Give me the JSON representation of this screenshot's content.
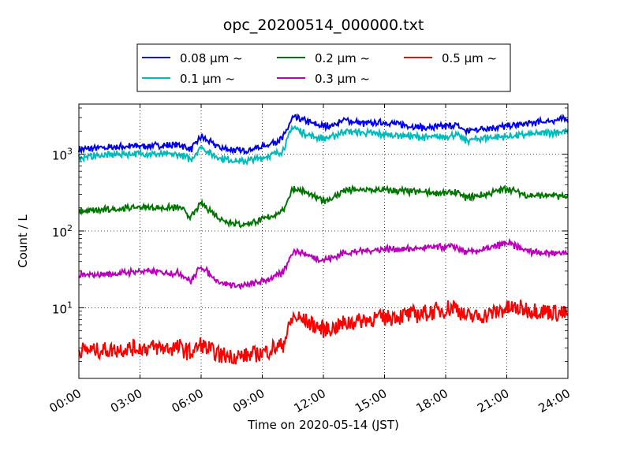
{
  "chart_data": {
    "type": "line",
    "title": "opc_20200514_000000.txt",
    "xlabel": "Time on 2020-05-14 (JST)",
    "ylabel": "Count / L",
    "y_scale": "log",
    "xlim": [
      "00:00",
      "24:00"
    ],
    "ylim": [
      1.2,
      4500
    ],
    "grid": true,
    "legend_position": "top-center",
    "legend_columns": 3,
    "x_ticks": [
      "00:00",
      "03:00",
      "06:00",
      "09:00",
      "12:00",
      "15:00",
      "18:00",
      "21:00",
      "24:00"
    ],
    "y_ticks": [
      {
        "base": "10",
        "exp": "1",
        "value": 10
      },
      {
        "base": "10",
        "exp": "2",
        "value": 100
      },
      {
        "base": "10",
        "exp": "3",
        "value": 1000
      }
    ],
    "x": [
      "00:00",
      "01:00",
      "02:00",
      "03:00",
      "04:00",
      "05:00",
      "05:30",
      "06:00",
      "06:30",
      "07:00",
      "08:00",
      "09:00",
      "10:00",
      "10:30",
      "11:00",
      "11:30",
      "12:00",
      "12:30",
      "13:00",
      "14:00",
      "15:00",
      "16:00",
      "17:00",
      "18:00",
      "18:30",
      "19:00",
      "20:00",
      "21:00",
      "22:00",
      "23:00",
      "24:00"
    ],
    "series": [
      {
        "name": "0.08 μm ~",
        "color": "#0000ee",
        "values": [
          1150,
          1200,
          1250,
          1280,
          1300,
          1320,
          1150,
          1700,
          1400,
          1200,
          1100,
          1250,
          1600,
          3000,
          2800,
          2500,
          2300,
          2400,
          2800,
          2500,
          2600,
          2400,
          2200,
          2300,
          2400,
          2000,
          2200,
          2300,
          2500,
          2700,
          2900
        ]
      },
      {
        "name": "0.1 μm ~",
        "color": "#00bbbb",
        "values": [
          900,
          960,
          1000,
          1020,
          1000,
          980,
          850,
          1250,
          1000,
          880,
          800,
          900,
          1100,
          2300,
          1900,
          1700,
          1600,
          1700,
          2000,
          1900,
          1800,
          1750,
          1650,
          1700,
          1800,
          1500,
          1650,
          1700,
          1800,
          1900,
          2000
        ]
      },
      {
        "name": "0.2 μm ~",
        "color": "#007700",
        "values": [
          180,
          185,
          195,
          205,
          200,
          200,
          150,
          230,
          180,
          140,
          120,
          140,
          180,
          360,
          330,
          280,
          250,
          270,
          340,
          340,
          340,
          330,
          320,
          310,
          320,
          270,
          300,
          360,
          290,
          290,
          280
        ]
      },
      {
        "name": "0.3 μm ~",
        "color": "#bb00bb",
        "values": [
          26,
          27,
          28,
          30,
          29,
          28,
          22,
          35,
          26,
          21,
          19,
          22,
          28,
          55,
          52,
          45,
          42,
          45,
          52,
          55,
          58,
          58,
          60,
          62,
          62,
          52,
          58,
          70,
          55,
          52,
          52
        ]
      },
      {
        "name": "0.5 μm ~",
        "color": "#ff0000",
        "values": [
          2.8,
          2.8,
          2.9,
          3.0,
          3.0,
          3.0,
          2.6,
          3.3,
          2.7,
          2.4,
          2.3,
          2.6,
          3.3,
          7.5,
          7.0,
          6.0,
          5.2,
          5.5,
          6.2,
          7.0,
          7.5,
          8.0,
          8.5,
          9.5,
          10.5,
          7.5,
          8.0,
          9.8,
          9.5,
          9.0,
          8.2
        ]
      }
    ]
  }
}
